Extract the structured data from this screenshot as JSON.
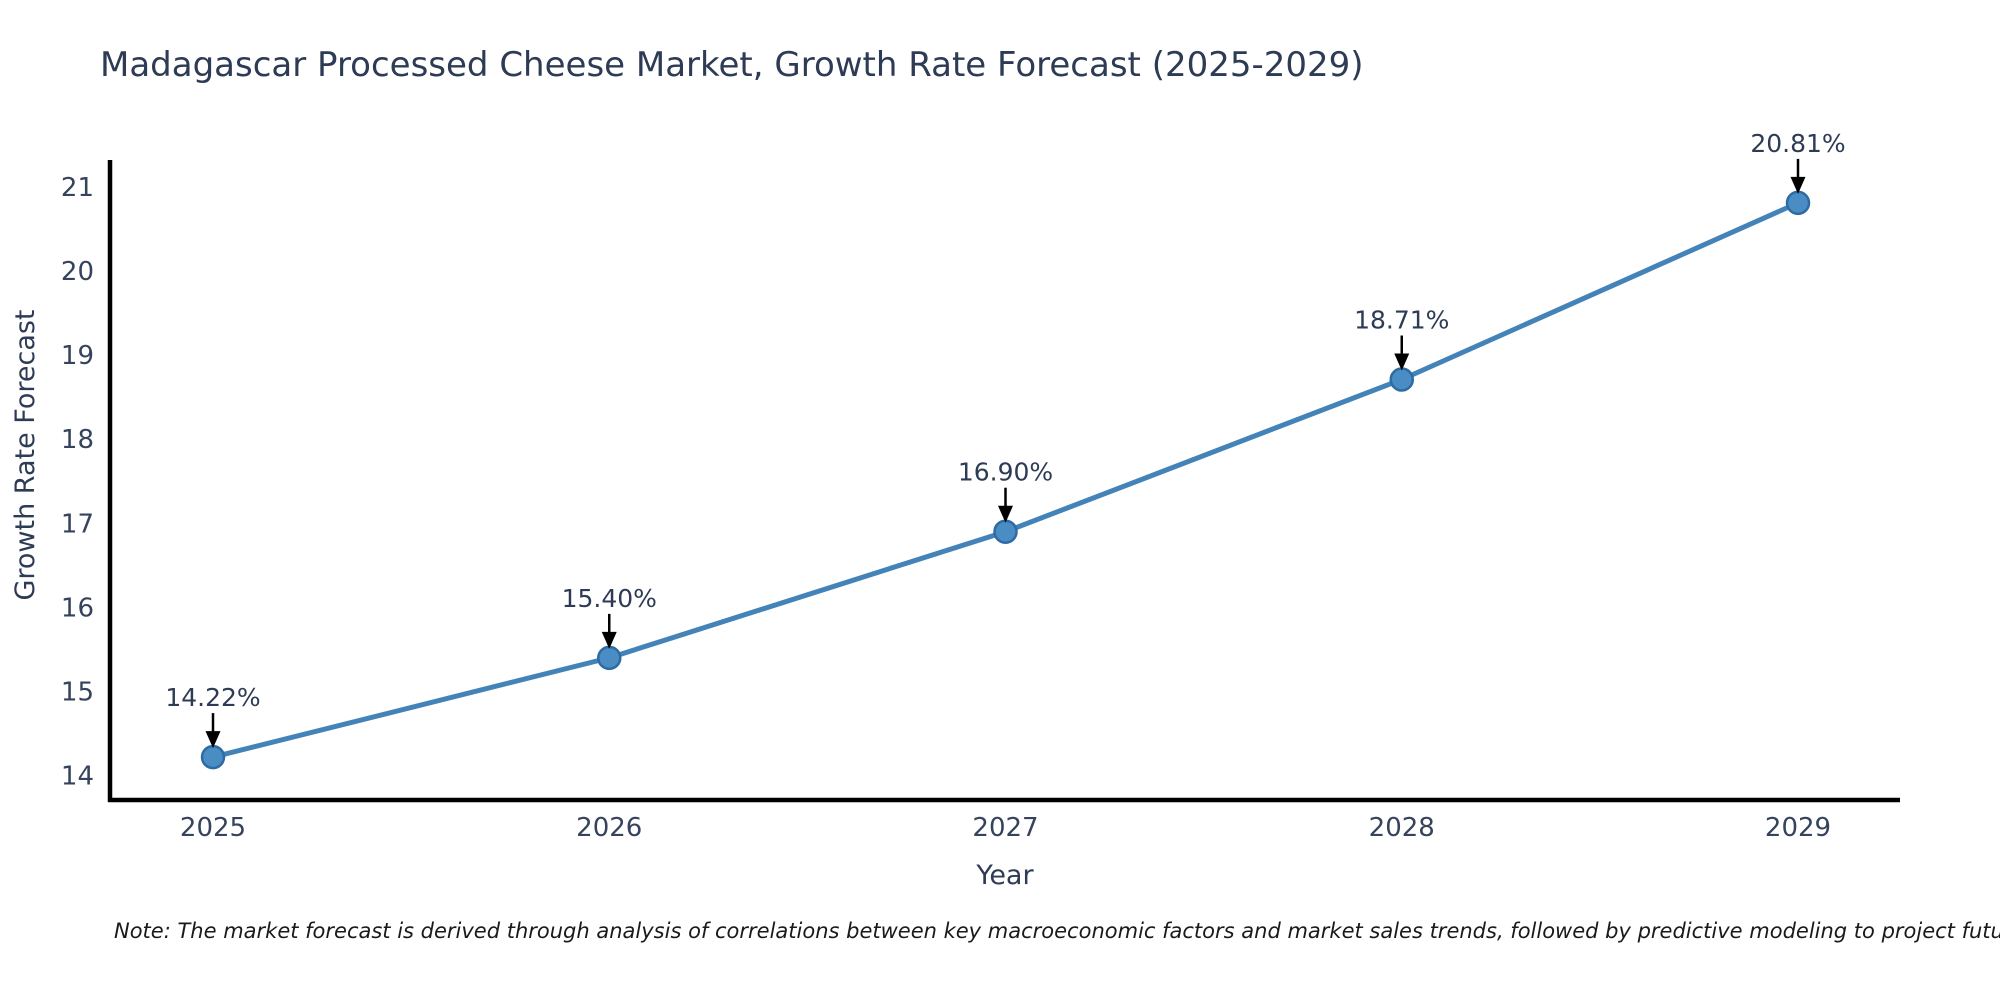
{
  "page": {
    "background": "#ffffff"
  },
  "chart_data": {
    "type": "line",
    "title": "Madagascar Processed Cheese Market, Growth Rate Forecast (2025-2029)",
    "xlabel": "Year",
    "ylabel": "Growth Rate Forecast",
    "categories": [
      "2025",
      "2026",
      "2027",
      "2028",
      "2029"
    ],
    "series": [
      {
        "name": "Growth Rate Forecast",
        "values": [
          14.22,
          15.4,
          16.9,
          18.71,
          20.81
        ]
      }
    ],
    "point_labels": [
      "14.22%",
      "15.40%",
      "16.90%",
      "18.71%",
      "20.81%"
    ],
    "yticks": [
      14,
      15,
      16,
      17,
      18,
      19,
      20,
      21
    ],
    "ylim": [
      13.71,
      21.32
    ],
    "grid": false,
    "legend_position": "none",
    "annotation_style": "label-above-with-down-arrow",
    "colors": {
      "line": "#4383b8",
      "marker_fill": "#4a8cc4",
      "marker_edge": "#2f6ba3",
      "arrow": "#000000",
      "axis": "#000000",
      "title_text": "#2e3b55",
      "tick_text": "#36435c",
      "note_text": "#1a1a1a"
    },
    "note": "Note: The market forecast is derived through analysis of correlations between key macroeconomic factors and market sales trends, followed by predictive modeling to project future sales"
  }
}
